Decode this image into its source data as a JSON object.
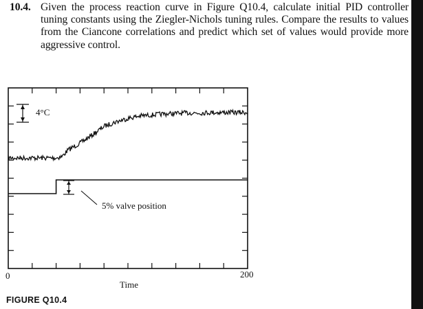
{
  "problem": {
    "number": "10.4.",
    "text": "Given the process reaction curve in Figure Q10.4, calculate initial PID controller tuning constants using the Ziegler-Nichols tuning rules. Compare the results to values from the Ciancone correlations and predict which set of values would provide more aggressive control."
  },
  "figure": {
    "caption": "FIGURE Q10.4",
    "temp_scale_label": "4°C",
    "valve_scale_label": "5% valve position",
    "x_axis_label": "Time",
    "x_tick_start": "0",
    "x_tick_end": "200"
  },
  "chart_data": {
    "type": "line",
    "xlabel": "Time",
    "xlim": [
      0,
      200
    ],
    "x_ticks": [
      0,
      200
    ],
    "annotations": [
      "4°C",
      "5% valve position"
    ],
    "series": [
      {
        "role": "temperature",
        "x": [
          0,
          20,
          40,
          45,
          50,
          60,
          70,
          80,
          90,
          100,
          110,
          120,
          130,
          140,
          150,
          160,
          170,
          180,
          190,
          200
        ],
        "y_degC": [
          0,
          0,
          0,
          0.3,
          1.6,
          3.0,
          4.6,
          6.4,
          7.3,
          8.0,
          8.5,
          8.7,
          8.9,
          9.0,
          9.1,
          9.1,
          9.2,
          9.2,
          9.2,
          9.2
        ]
      },
      {
        "role": "valve",
        "x": [
          0,
          40,
          40,
          200
        ],
        "y_percent": [
          0,
          0,
          5,
          5
        ]
      }
    ]
  },
  "colors": {
    "ink": "#111111",
    "paper": "#ffffff",
    "edge": "#111111"
  }
}
